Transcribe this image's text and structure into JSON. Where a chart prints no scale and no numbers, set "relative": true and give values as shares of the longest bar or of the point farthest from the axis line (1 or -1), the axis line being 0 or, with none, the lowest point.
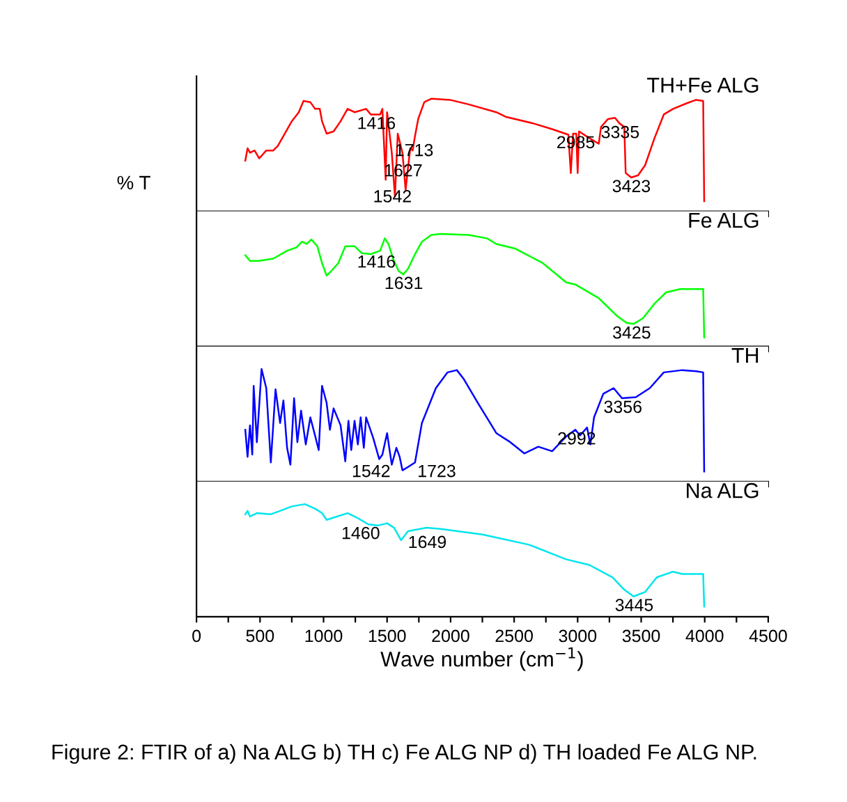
{
  "chart_data": [
    {
      "type": "line",
      "relative": true,
      "ylabel": "% T",
      "tick_labels": false,
      "xlim": [
        0,
        4500
      ],
      "xticks": [
        0,
        {
          "value": 250,
          "label": null
        },
        500,
        {
          "value": 750,
          "label": null
        },
        1000,
        {
          "value": 1250,
          "label": null
        },
        1500,
        {
          "value": 1750,
          "label": null
        },
        2000,
        {
          "value": 2250,
          "label": null
        },
        2500,
        {
          "value": 2750,
          "label": null
        },
        3000,
        {
          "value": 3250,
          "label": null
        },
        3500,
        {
          "value": 3750,
          "label": null
        },
        4000,
        {
          "value": 4250,
          "label": null
        },
        4500
      ],
      "series": [
        {
          "name": "TH+Fe ALG",
          "color": "#ff0000",
          "x": [
            384,
            402,
            421,
            457,
            494,
            549,
            604,
            640,
            695,
            750,
            805,
            842,
            896,
            933,
            970,
            988,
            1024,
            1079,
            1134,
            1189,
            1244,
            1335,
            1372,
            1445,
            1463,
            1489,
            1500,
            1537,
            1562,
            1584,
            1621,
            1646,
            1665,
            1683,
            1701,
            1720,
            1745,
            1793,
            1848,
            1994,
            2141,
            2360,
            2433,
            2653,
            2799,
            2927,
            2946,
            2964,
            2989,
            3000,
            3011,
            3092,
            3166,
            3184,
            3239,
            3294,
            3330,
            3367,
            3378,
            3422,
            3476,
            3531,
            3605,
            3678,
            3751,
            3860,
            3933,
            3988,
            3996
          ],
          "values": [
            0.45,
            0.56,
            0.52,
            0.54,
            0.47,
            0.54,
            0.54,
            0.58,
            0.69,
            0.8,
            0.88,
            0.98,
            0.97,
            0.91,
            0.91,
            0.8,
            0.69,
            0.71,
            0.8,
            0.91,
            0.88,
            0.91,
            0.86,
            0.86,
            0.91,
            0.28,
            0.88,
            0.52,
            0.13,
            0.69,
            0.52,
            0.19,
            0.39,
            0.56,
            0.54,
            0.67,
            0.82,
            0.97,
            1.0,
            0.99,
            0.95,
            0.88,
            0.84,
            0.78,
            0.73,
            0.68,
            0.34,
            0.69,
            0.69,
            0.34,
            0.71,
            0.65,
            0.6,
            0.75,
            0.82,
            0.83,
            0.78,
            0.75,
            0.34,
            0.3,
            0.32,
            0.41,
            0.65,
            0.86,
            0.91,
            0.96,
            0.99,
            0.98,
            0.09
          ]
        }
      ],
      "annotations": [
        {
          "text": "1416",
          "x": 1416,
          "y": 0.86
        },
        {
          "text": "1627",
          "x": 1627,
          "y": 0.44
        },
        {
          "text": "1713",
          "x": 1713,
          "y": 0.62
        },
        {
          "text": "1542",
          "x": 1542,
          "y": 0.21
        },
        {
          "text": "2985",
          "x": 2985,
          "y": 0.69
        },
        {
          "text": "3335",
          "x": 3335,
          "y": 0.78
        },
        {
          "text": "3423",
          "x": 3423,
          "y": 0.3
        }
      ]
    },
    {
      "type": "line",
      "relative": true,
      "tick_labels": false,
      "xlim": [
        0,
        4500
      ],
      "xticks": [
        0,
        {
          "value": 250,
          "label": null
        },
        500,
        {
          "value": 750,
          "label": null
        },
        1000,
        {
          "value": 1250,
          "label": null
        },
        1500,
        {
          "value": 1750,
          "label": null
        },
        2000,
        {
          "value": 2250,
          "label": null
        },
        2500,
        {
          "value": 2750,
          "label": null
        },
        3000,
        {
          "value": 3250,
          "label": null
        },
        3500,
        {
          "value": 3750,
          "label": null
        },
        4000,
        {
          "value": 4250,
          "label": null
        },
        4500
      ],
      "series": [
        {
          "name": "Fe ALG",
          "color": "#00ff00",
          "x": [
            384,
            421,
            494,
            604,
            713,
            787,
            830,
            867,
            904,
            951,
            988,
            1024,
            1061,
            1116,
            1171,
            1244,
            1299,
            1372,
            1445,
            1482,
            1511,
            1547,
            1591,
            1628,
            1665,
            1720,
            1774,
            1848,
            1921,
            2141,
            2287,
            2360,
            2506,
            2726,
            2909,
            2982,
            3165,
            3311,
            3385,
            3440,
            3513,
            3605,
            3696,
            3806,
            3988,
            3996
          ],
          "values": [
            0.81,
            0.76,
            0.76,
            0.78,
            0.85,
            0.88,
            0.93,
            0.91,
            0.95,
            0.89,
            0.74,
            0.63,
            0.67,
            0.74,
            0.89,
            0.89,
            0.83,
            0.82,
            0.85,
            0.96,
            0.91,
            0.78,
            0.67,
            0.64,
            0.69,
            0.82,
            0.93,
            0.99,
            1.0,
            0.99,
            0.96,
            0.91,
            0.87,
            0.74,
            0.57,
            0.55,
            0.43,
            0.27,
            0.21,
            0.2,
            0.25,
            0.38,
            0.48,
            0.51,
            0.51,
            0.08
          ]
        }
      ],
      "annotations": [
        {
          "text": "1416",
          "x": 1416,
          "y": 0.83
        },
        {
          "text": "1631",
          "x": 1631,
          "y": 0.64
        },
        {
          "text": "3425",
          "x": 3425,
          "y": 0.2
        }
      ]
    },
    {
      "type": "line",
      "relative": true,
      "tick_labels": false,
      "xlim": [
        0,
        4500
      ],
      "xticks": [
        0,
        {
          "value": 250,
          "label": null
        },
        500,
        {
          "value": 750,
          "label": null
        },
        1000,
        {
          "value": 1250,
          "label": null
        },
        1500,
        {
          "value": 1750,
          "label": null
        },
        2000,
        {
          "value": 2250,
          "label": null
        },
        2500,
        {
          "value": 2750,
          "label": null
        },
        3000,
        {
          "value": 3250,
          "label": null
        },
        3500,
        {
          "value": 3750,
          "label": null
        },
        4000,
        {
          "value": 4250,
          "label": null
        },
        4500
      ],
      "series": [
        {
          "name": "TH",
          "color": "#0000ff",
          "x": [
            384,
            402,
            421,
            439,
            450,
            475,
            512,
            549,
            585,
            622,
            658,
            684,
            713,
            739,
            768,
            794,
            823,
            860,
            896,
            933,
            962,
            988,
            1024,
            1050,
            1079,
            1134,
            1171,
            1196,
            1218,
            1244,
            1270,
            1292,
            1317,
            1335,
            1390,
            1438,
            1463,
            1500,
            1537,
            1573,
            1599,
            1621,
            1665,
            1720,
            1774,
            1884,
            1976,
            2049,
            2104,
            2214,
            2360,
            2470,
            2580,
            2690,
            2799,
            2909,
            2982,
            3019,
            3074,
            3100,
            3129,
            3202,
            3283,
            3349,
            3458,
            3568,
            3678,
            3824,
            3933,
            3988,
            3996
          ],
          "values": [
            0.46,
            0.22,
            0.5,
            0.24,
            0.85,
            0.35,
            1.0,
            0.83,
            0.17,
            0.82,
            0.52,
            0.72,
            0.3,
            0.15,
            0.74,
            0.35,
            0.63,
            0.33,
            0.57,
            0.41,
            0.28,
            0.85,
            0.7,
            0.46,
            0.65,
            0.5,
            0.18,
            0.54,
            0.28,
            0.54,
            0.33,
            0.57,
            0.3,
            0.57,
            0.39,
            0.2,
            0.24,
            0.43,
            0.15,
            0.3,
            0.22,
            0.1,
            0.13,
            0.17,
            0.52,
            0.83,
            0.97,
            0.99,
            0.91,
            0.7,
            0.43,
            0.35,
            0.25,
            0.31,
            0.27,
            0.4,
            0.46,
            0.41,
            0.48,
            0.33,
            0.57,
            0.78,
            0.83,
            0.74,
            0.75,
            0.83,
            0.97,
            0.99,
            0.98,
            0.97,
            0.09
          ]
        }
      ],
      "annotations": [
        {
          "text": "1542",
          "x": 1542,
          "y": 0.17
        },
        {
          "text": "1723",
          "x": 1723,
          "y": 0.17
        },
        {
          "text": "2992",
          "x": 2992,
          "y": 0.46
        },
        {
          "text": "3356",
          "x": 3356,
          "y": 0.74
        }
      ]
    },
    {
      "type": "line",
      "relative": true,
      "tick_labels": "x",
      "xlabel": "Wave number (cm$^{−1}$)",
      "xlim": [
        0,
        4500
      ],
      "xticks": [
        0,
        {
          "value": 250,
          "label": null
        },
        500,
        {
          "value": 750,
          "label": null
        },
        1000,
        {
          "value": 1250,
          "label": null
        },
        1500,
        {
          "value": 1750,
          "label": null
        },
        2000,
        {
          "value": 2250,
          "label": null
        },
        2500,
        {
          "value": 2750,
          "label": null
        },
        3000,
        {
          "value": 3250,
          "label": null
        },
        3500,
        {
          "value": 3750,
          "label": null
        },
        4000,
        {
          "value": 4250,
          "label": null
        },
        4500
      ],
      "series": [
        {
          "name": "Na ALG",
          "color": "#00e5ee",
          "x": [
            384,
            402,
            421,
            475,
            585,
            658,
            750,
            853,
            933,
            988,
            1024,
            1079,
            1189,
            1262,
            1354,
            1427,
            1500,
            1555,
            1610,
            1665,
            1811,
            1921,
            2250,
            2616,
            2909,
            3092,
            3275,
            3367,
            3440,
            3531,
            3623,
            3751,
            3824,
            3988,
            3996
          ],
          "values": [
            0.91,
            0.94,
            0.89,
            0.92,
            0.91,
            0.94,
            0.98,
            1.0,
            0.96,
            0.92,
            0.86,
            0.88,
            0.92,
            0.88,
            0.82,
            0.81,
            0.83,
            0.79,
            0.68,
            0.76,
            0.79,
            0.78,
            0.73,
            0.64,
            0.51,
            0.46,
            0.35,
            0.24,
            0.18,
            0.22,
            0.35,
            0.4,
            0.38,
            0.38,
            0.09
          ]
        }
      ],
      "annotations": [
        {
          "text": "1460",
          "x": 1460,
          "y": 0.82
        },
        {
          "text": "1649",
          "x": 1649,
          "y": 0.74
        },
        {
          "text": "3445",
          "x": 3445,
          "y": 0.18
        },
        "Figure 2: FTIR of a) Na ALG b) TH c) Fe ALG NP d) TH loaded Fe ALG NP."
      ]
    }
  ]
}
